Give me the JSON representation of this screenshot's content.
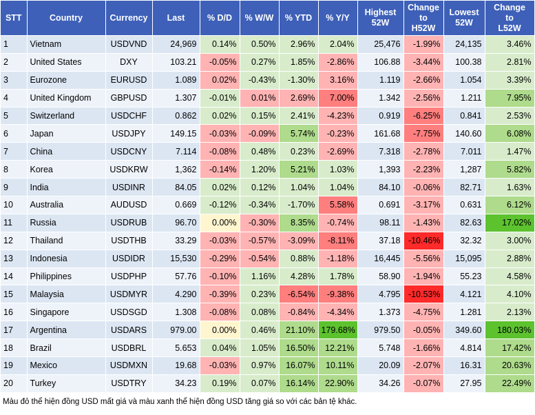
{
  "headers": {
    "stt": "STT",
    "country": "Country",
    "currency": "Currency",
    "last": "Last",
    "dd": "% D/D",
    "ww": "% W/W",
    "ytd": "% YTD",
    "yy": "% Y/Y",
    "high52_l1": "Highest",
    "high52_l2": "52W",
    "chgh_l1": "Change",
    "chgh_l2": "to",
    "chgh_l3": "H52W",
    "low52_l1": "Lowest",
    "low52_l2": "52W",
    "chgl_l1": "Change",
    "chgl_l2": "to",
    "chgl_l3": "L52W"
  },
  "colors": {
    "header_bg": "#3e60b8",
    "row_odd": "#dce6f3",
    "row_even": "#eef3fa",
    "red_light": "#ffb3b3",
    "red_mid": "#ff7e7e",
    "red_dark": "#ff2a2a",
    "green_light": "#d8eccb",
    "green_mid": "#aedb8c",
    "green_dark": "#5cc22e",
    "yellow": "#fff6d0"
  },
  "rows": [
    {
      "stt": "1",
      "country": "Vietnam",
      "currency": "USDVND",
      "last": "24,969",
      "dd": "0.14%",
      "ww": "0.50%",
      "ytd": "2.96%",
      "yy": "2.04%",
      "high52": "25,476",
      "chg_h52": "-1.99%",
      "low52": "24,135",
      "chg_l52": "3.46%",
      "shade": {
        "dd": "green_light",
        "ww": "green_light",
        "ytd": "green_light",
        "yy": "green_light",
        "chg_h52": "red_light",
        "chg_l52": "green_light"
      }
    },
    {
      "stt": "2",
      "country": "United States",
      "currency": "DXY",
      "last": "103.21",
      "dd": "-0.05%",
      "ww": "0.27%",
      "ytd": "1.85%",
      "yy": "-2.86%",
      "high52": "106.88",
      "chg_h52": "-3.44%",
      "low52": "100.38",
      "chg_l52": "2.81%",
      "shade": {
        "dd": "red_light",
        "ww": "green_light",
        "ytd": "green_light",
        "yy": "red_light",
        "chg_h52": "red_light",
        "chg_l52": "green_light"
      }
    },
    {
      "stt": "3",
      "country": "Eurozone",
      "currency": "EURUSD",
      "last": "1.089",
      "dd": "0.02%",
      "ww": "-0.43%",
      "ytd": "-1.30%",
      "yy": "3.16%",
      "high52": "1.119",
      "chg_h52": "-2.66%",
      "low52": "1.054",
      "chg_l52": "3.39%",
      "shade": {
        "dd": "red_light",
        "ww": "green_light",
        "ytd": "green_light",
        "yy": "red_light",
        "chg_h52": "red_light",
        "chg_l52": "green_light"
      }
    },
    {
      "stt": "4",
      "country": "United Kingdom",
      "currency": "GBPUSD",
      "last": "1.307",
      "dd": "-0.01%",
      "ww": "0.01%",
      "ytd": "2.69%",
      "yy": "7.00%",
      "high52": "1.342",
      "chg_h52": "-2.56%",
      "low52": "1.211",
      "chg_l52": "7.95%",
      "shade": {
        "dd": "green_light",
        "ww": "red_light",
        "ytd": "red_light",
        "yy": "red_mid",
        "chg_h52": "red_light",
        "chg_l52": "green_mid"
      }
    },
    {
      "stt": "5",
      "country": "Switzerland",
      "currency": "USDCHF",
      "last": "0.862",
      "dd": "0.02%",
      "ww": "0.15%",
      "ytd": "2.41%",
      "yy": "-4.23%",
      "high52": "0.919",
      "chg_h52": "-6.25%",
      "low52": "0.841",
      "chg_l52": "2.53%",
      "shade": {
        "dd": "green_light",
        "ww": "green_light",
        "ytd": "green_light",
        "yy": "red_light",
        "chg_h52": "red_mid",
        "chg_l52": "green_light"
      }
    },
    {
      "stt": "6",
      "country": "Japan",
      "currency": "USDJPY",
      "last": "149.15",
      "dd": "-0.03%",
      "ww": "-0.09%",
      "ytd": "5.74%",
      "yy": "-0.23%",
      "high52": "161.68",
      "chg_h52": "-7.75%",
      "low52": "140.60",
      "chg_l52": "6.08%",
      "shade": {
        "dd": "red_light",
        "ww": "red_light",
        "ytd": "green_mid",
        "yy": "red_light",
        "chg_h52": "red_mid",
        "chg_l52": "green_mid"
      }
    },
    {
      "stt": "7",
      "country": "China",
      "currency": "USDCNY",
      "last": "7.114",
      "dd": "-0.08%",
      "ww": "0.48%",
      "ytd": "0.23%",
      "yy": "-2.69%",
      "high52": "7.318",
      "chg_h52": "-2.78%",
      "low52": "7.011",
      "chg_l52": "1.47%",
      "shade": {
        "dd": "red_light",
        "ww": "green_light",
        "ytd": "green_light",
        "yy": "red_light",
        "chg_h52": "red_light",
        "chg_l52": "green_light"
      }
    },
    {
      "stt": "8",
      "country": "Korea",
      "currency": "USDKRW",
      "last": "1,362",
      "dd": "-0.14%",
      "ww": "1.20%",
      "ytd": "5.21%",
      "yy": "1.03%",
      "high52": "1,393",
      "chg_h52": "-2.23%",
      "low52": "1,287",
      "chg_l52": "5.82%",
      "shade": {
        "dd": "red_light",
        "ww": "green_light",
        "ytd": "green_mid",
        "yy": "green_light",
        "chg_h52": "red_light",
        "chg_l52": "green_mid"
      }
    },
    {
      "stt": "9",
      "country": "India",
      "currency": "USDINR",
      "last": "84.05",
      "dd": "0.02%",
      "ww": "0.12%",
      "ytd": "1.04%",
      "yy": "1.04%",
      "high52": "84.10",
      "chg_h52": "-0.06%",
      "low52": "82.71",
      "chg_l52": "1.63%",
      "shade": {
        "dd": "green_light",
        "ww": "green_light",
        "ytd": "green_light",
        "yy": "green_light",
        "chg_h52": "red_light",
        "chg_l52": "green_light"
      }
    },
    {
      "stt": "10",
      "country": "Australia",
      "currency": "AUDUSD",
      "last": "0.669",
      "dd": "-0.12%",
      "ww": "-0.34%",
      "ytd": "-1.70%",
      "yy": "5.58%",
      "high52": "0.691",
      "chg_h52": "-3.17%",
      "low52": "0.631",
      "chg_l52": "6.12%",
      "shade": {
        "dd": "green_light",
        "ww": "green_light",
        "ytd": "green_light",
        "yy": "red_mid",
        "chg_h52": "red_light",
        "chg_l52": "green_mid"
      }
    },
    {
      "stt": "11",
      "country": "Russia",
      "currency": "USDRUB",
      "last": "96.70",
      "dd": "0.00%",
      "ww": "-0.30%",
      "ytd": "8.35%",
      "yy": "-0.74%",
      "high52": "98.11",
      "chg_h52": "-1.43%",
      "low52": "82.63",
      "chg_l52": "17.02%",
      "shade": {
        "dd": "yellow",
        "ww": "red_light",
        "ytd": "green_mid",
        "yy": "red_light",
        "chg_h52": "red_light",
        "chg_l52": "green_dark"
      }
    },
    {
      "stt": "12",
      "country": "Thailand",
      "currency": "USDTHB",
      "last": "33.29",
      "dd": "-0.03%",
      "ww": "-0.57%",
      "ytd": "-3.09%",
      "yy": "-8.11%",
      "high52": "37.18",
      "chg_h52": "-10.46%",
      "low52": "32.32",
      "chg_l52": "3.00%",
      "shade": {
        "dd": "red_light",
        "ww": "red_light",
        "ytd": "red_light",
        "yy": "red_mid",
        "chg_h52": "red_dark",
        "chg_l52": "green_light"
      }
    },
    {
      "stt": "13",
      "country": "Indonesia",
      "currency": "USDIDR",
      "last": "15,530",
      "dd": "-0.29%",
      "ww": "-0.54%",
      "ytd": "0.88%",
      "yy": "-1.18%",
      "high52": "16,445",
      "chg_h52": "-5.56%",
      "low52": "15,095",
      "chg_l52": "2.88%",
      "shade": {
        "dd": "red_light",
        "ww": "red_light",
        "ytd": "green_light",
        "yy": "red_light",
        "chg_h52": "red_light",
        "chg_l52": "green_light"
      }
    },
    {
      "stt": "14",
      "country": "Philippines",
      "currency": "USDPHP",
      "last": "57.76",
      "dd": "-0.10%",
      "ww": "1.16%",
      "ytd": "4.28%",
      "yy": "1.78%",
      "high52": "58.90",
      "chg_h52": "-1.94%",
      "low52": "55.23",
      "chg_l52": "4.58%",
      "shade": {
        "dd": "red_light",
        "ww": "green_light",
        "ytd": "green_light",
        "yy": "green_light",
        "chg_h52": "red_light",
        "chg_l52": "green_light"
      }
    },
    {
      "stt": "15",
      "country": "Malaysia",
      "currency": "USDMYR",
      "last": "4.290",
      "dd": "-0.39%",
      "ww": "0.23%",
      "ytd": "-6.54%",
      "yy": "-9.38%",
      "high52": "4.795",
      "chg_h52": "-10.53%",
      "low52": "4.121",
      "chg_l52": "4.10%",
      "shade": {
        "dd": "red_light",
        "ww": "green_light",
        "ytd": "red_mid",
        "yy": "red_mid",
        "chg_h52": "red_dark",
        "chg_l52": "green_light"
      }
    },
    {
      "stt": "16",
      "country": "Singapore",
      "currency": "USDSGD",
      "last": "1.308",
      "dd": "-0.08%",
      "ww": "0.08%",
      "ytd": "-0.84%",
      "yy": "-4.34%",
      "high52": "1.373",
      "chg_h52": "-4.75%",
      "low52": "1.281",
      "chg_l52": "2.13%",
      "shade": {
        "dd": "red_light",
        "ww": "green_light",
        "ytd": "red_light",
        "yy": "red_light",
        "chg_h52": "red_light",
        "chg_l52": "green_light"
      }
    },
    {
      "stt": "17",
      "country": "Argentina",
      "currency": "USDARS",
      "last": "979.00",
      "dd": "0.00%",
      "ww": "0.46%",
      "ytd": "21.10%",
      "yy": "179.68%",
      "high52": "979.50",
      "chg_h52": "-0.05%",
      "low52": "349.60",
      "chg_l52": "180.03%",
      "shade": {
        "dd": "yellow",
        "ww": "green_light",
        "ytd": "green_mid",
        "yy": "green_dark",
        "chg_h52": "red_light",
        "chg_l52": "green_dark"
      }
    },
    {
      "stt": "18",
      "country": "Brazil",
      "currency": "USDBRL",
      "last": "5.653",
      "dd": "0.04%",
      "ww": "1.05%",
      "ytd": "16.50%",
      "yy": "12.21%",
      "high52": "5.748",
      "chg_h52": "-1.66%",
      "low52": "4.814",
      "chg_l52": "17.42%",
      "shade": {
        "dd": "green_light",
        "ww": "green_light",
        "ytd": "green_mid",
        "yy": "green_mid",
        "chg_h52": "red_light",
        "chg_l52": "green_mid"
      }
    },
    {
      "stt": "19",
      "country": "Mexico",
      "currency": "USDMXN",
      "last": "19.68",
      "dd": "-0.03%",
      "ww": "0.97%",
      "ytd": "16.07%",
      "yy": "10.11%",
      "high52": "20.09",
      "chg_h52": "-2.07%",
      "low52": "16.31",
      "chg_l52": "20.63%",
      "shade": {
        "dd": "red_light",
        "ww": "green_light",
        "ytd": "green_mid",
        "yy": "green_mid",
        "chg_h52": "red_light",
        "chg_l52": "green_mid"
      }
    },
    {
      "stt": "20",
      "country": "Turkey",
      "currency": "USDTRY",
      "last": "34.23",
      "dd": "0.19%",
      "ww": "0.07%",
      "ytd": "16.14%",
      "yy": "22.90%",
      "high52": "34.26",
      "chg_h52": "-0.07%",
      "low52": "27.95",
      "chg_l52": "22.49%",
      "shade": {
        "dd": "green_light",
        "ww": "green_light",
        "ytd": "green_mid",
        "yy": "green_mid",
        "chg_h52": "red_light",
        "chg_l52": "green_mid"
      }
    }
  ],
  "note": "Màu đỏ thể hiện đồng USD mất giá và màu xanh thể hiện đồng USD tăng giá so với các bản tệ khác."
}
